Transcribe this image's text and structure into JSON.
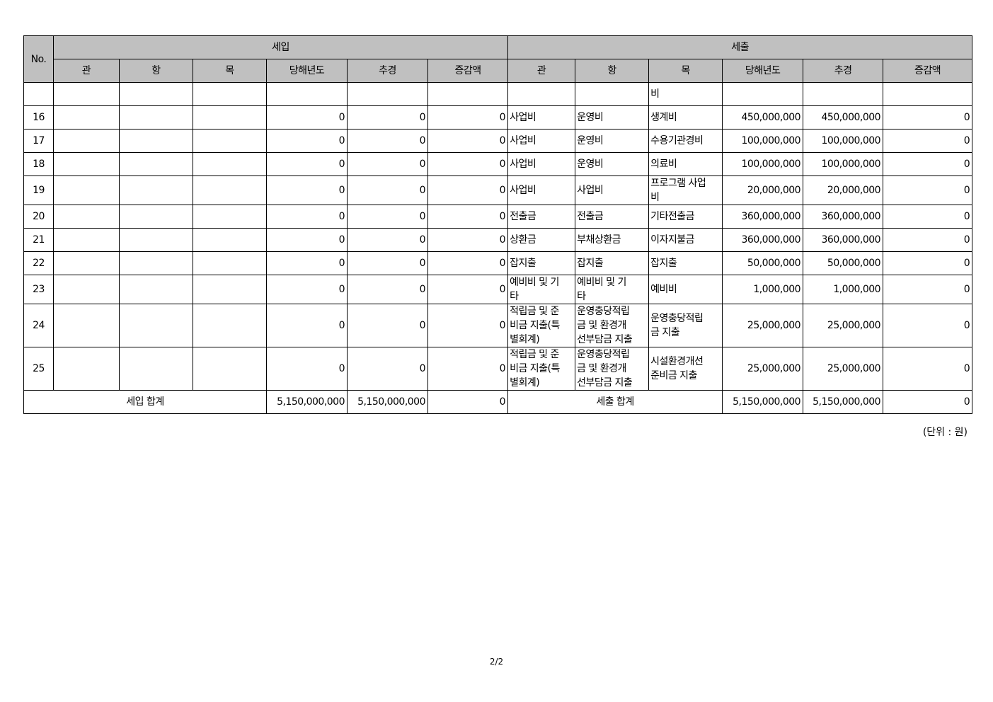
{
  "header": {
    "no": "No.",
    "income_group": "세입",
    "expense_group": "세출",
    "income_cols": [
      "관",
      "항",
      "목",
      "당해년도",
      "추경",
      "증감액"
    ],
    "expense_cols": [
      "관",
      "항",
      "목",
      "당해년도",
      "추경",
      "증감액"
    ]
  },
  "rows": [
    {
      "no": "",
      "in": [
        "",
        "",
        "",
        "",
        "",
        ""
      ],
      "out": [
        "",
        "",
        "비",
        "",
        "",
        ""
      ]
    },
    {
      "no": "16",
      "in": [
        "",
        "",
        "",
        "0",
        "0",
        "0"
      ],
      "out": [
        "사업비",
        "운영비",
        "생계비",
        "450,000,000",
        "450,000,000",
        "0"
      ]
    },
    {
      "no": "17",
      "in": [
        "",
        "",
        "",
        "0",
        "0",
        "0"
      ],
      "out": [
        "사업비",
        "운영비",
        "수용기관경비",
        "100,000,000",
        "100,000,000",
        "0"
      ]
    },
    {
      "no": "18",
      "in": [
        "",
        "",
        "",
        "0",
        "0",
        "0"
      ],
      "out": [
        "사업비",
        "운영비",
        "의료비",
        "100,000,000",
        "100,000,000",
        "0"
      ]
    },
    {
      "no": "19",
      "in": [
        "",
        "",
        "",
        "0",
        "0",
        "0"
      ],
      "out": [
        "사업비",
        "사업비",
        "프로그램 사업\n비",
        "20,000,000",
        "20,000,000",
        "0"
      ]
    },
    {
      "no": "20",
      "in": [
        "",
        "",
        "",
        "0",
        "0",
        "0"
      ],
      "out": [
        "전출금",
        "전출금",
        "기타전출금",
        "360,000,000",
        "360,000,000",
        "0"
      ]
    },
    {
      "no": "21",
      "in": [
        "",
        "",
        "",
        "0",
        "0",
        "0"
      ],
      "out": [
        "상환금",
        "부채상환금",
        "이자지불금",
        "360,000,000",
        "360,000,000",
        "0"
      ]
    },
    {
      "no": "22",
      "in": [
        "",
        "",
        "",
        "0",
        "0",
        "0"
      ],
      "out": [
        "잡지출",
        "잡지출",
        "잡지출",
        "50,000,000",
        "50,000,000",
        "0"
      ]
    },
    {
      "no": "23",
      "in": [
        "",
        "",
        "",
        "0",
        "0",
        "0"
      ],
      "out": [
        "예비비 및 기\n타",
        "예비비 및 기\n타",
        "예비비",
        "1,000,000",
        "1,000,000",
        "0"
      ]
    },
    {
      "no": "24",
      "in": [
        "",
        "",
        "",
        "0",
        "0",
        "0"
      ],
      "out": [
        "적립금 및 준\n비금 지출(특\n별회계)",
        "운영충당적립\n금 및 환경개\n선부담금 지출",
        "운영충당적립\n금 지출",
        "25,000,000",
        "25,000,000",
        "0"
      ]
    },
    {
      "no": "25",
      "in": [
        "",
        "",
        "",
        "0",
        "0",
        "0"
      ],
      "out": [
        "적립금 및 준\n비금 지출(특\n별회계)",
        "운영충당적립\n금 및 환경개\n선부담금 지출",
        "시설환경개선\n준비금 지출",
        "25,000,000",
        "25,000,000",
        "0"
      ]
    }
  ],
  "totals": {
    "income_label": "세입 합계",
    "income": [
      "5,150,000,000",
      "5,150,000,000",
      "0"
    ],
    "expense_label": "세출 합계",
    "expense": [
      "5,150,000,000",
      "5,150,000,000",
      "0"
    ]
  },
  "unit_note": "(단위 : 원)",
  "page_number": "2/2"
}
